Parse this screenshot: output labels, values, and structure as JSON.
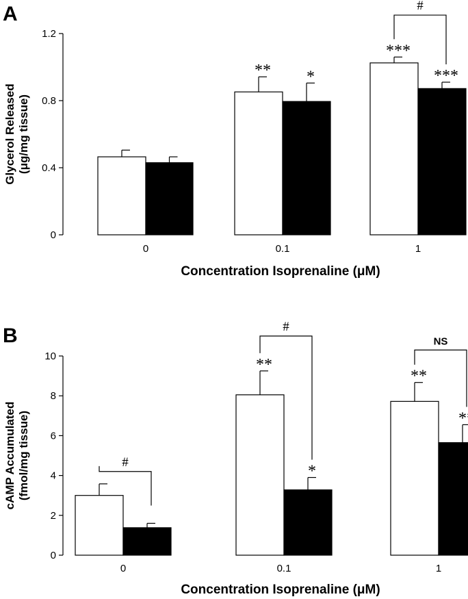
{
  "chart_data": [
    {
      "type": "bar",
      "panel_label": "A",
      "title": "",
      "categories": [
        "0",
        "0.1",
        "1"
      ],
      "series": [
        {
          "name": "open bars",
          "fill": "#ffffff",
          "values": [
            0.465,
            0.852,
            1.025
          ],
          "errors": [
            0.04,
            0.09,
            0.035
          ]
        },
        {
          "name": "filled bars",
          "fill": "#000000",
          "values": [
            0.43,
            0.795,
            0.872
          ],
          "errors": [
            0.035,
            0.11,
            0.038
          ]
        }
      ],
      "xlabel": "Concentration Isoprenaline (μM)",
      "ylabel_line1": "Glycerol Released",
      "ylabel_line2": "(μg/mg tissue)",
      "ylim": [
        0,
        1.2
      ],
      "yticks": [
        0,
        0.4,
        0.8,
        1.2
      ],
      "ytick_labels": [
        "0",
        "0.4",
        "0.8",
        "1.2"
      ],
      "significance": [
        {
          "category": 1,
          "series": 0,
          "text": "**"
        },
        {
          "category": 1,
          "series": 1,
          "text": "*"
        },
        {
          "category": 2,
          "series": 0,
          "text": "***"
        },
        {
          "category": 2,
          "series": 1,
          "text": "***"
        }
      ],
      "brackets": [
        {
          "category": 2,
          "text": "#",
          "level": 1.31
        }
      ]
    },
    {
      "type": "bar",
      "panel_label": "B",
      "title": "",
      "categories": [
        "0",
        "0.1",
        "1"
      ],
      "series": [
        {
          "name": "open bars",
          "fill": "#ffffff",
          "values": [
            3.0,
            8.05,
            7.72
          ],
          "errors": [
            0.58,
            1.2,
            0.95
          ]
        },
        {
          "name": "filled bars",
          "fill": "#000000",
          "values": [
            1.38,
            3.28,
            5.65
          ],
          "errors": [
            0.22,
            0.62,
            0.9
          ]
        }
      ],
      "xlabel": "Concentration Isoprenaline (μM)",
      "ylabel_line1": "cAMP Accumulated",
      "ylabel_line2": "(fmol/mg tissue)",
      "ylim": [
        0,
        10
      ],
      "yticks": [
        0,
        2,
        4,
        6,
        8,
        10
      ],
      "ytick_labels": [
        "0",
        "2",
        "4",
        "6",
        "8",
        "10"
      ],
      "significance": [
        {
          "category": 1,
          "series": 0,
          "text": "**"
        },
        {
          "category": 1,
          "series": 1,
          "text": "*"
        },
        {
          "category": 2,
          "series": 0,
          "text": "**"
        },
        {
          "category": 2,
          "series": 1,
          "text": "**"
        }
      ],
      "brackets": [
        {
          "category": 0,
          "text": "#",
          "level": 4.2
        },
        {
          "category": 1,
          "text": "#",
          "level": 11.0
        },
        {
          "category": 2,
          "text": "NS",
          "level": 10.3
        }
      ]
    }
  ]
}
